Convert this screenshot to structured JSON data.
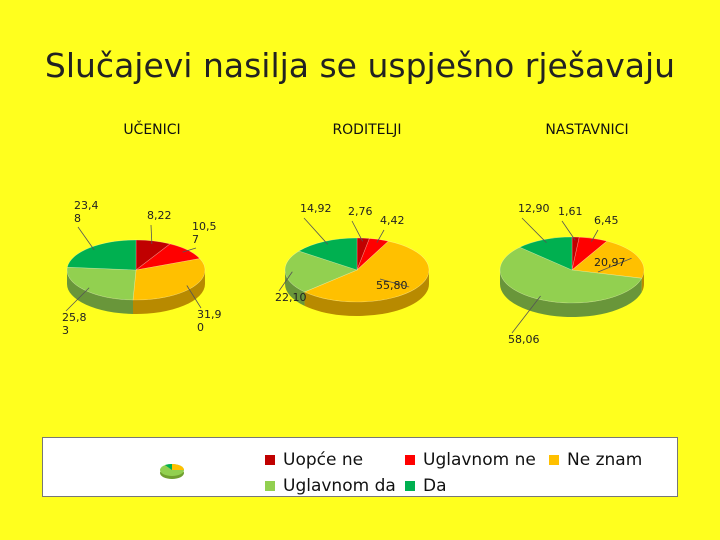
{
  "page": {
    "title": "Slučajevi nasilja se uspješno rješavaju"
  },
  "categories": [
    "Uopće ne",
    "Uglavnom ne",
    "Ne znam",
    "Uglavnom da",
    "Da"
  ],
  "colors": [
    "#c00000",
    "#ff0000",
    "#ffc000",
    "#92d050",
    "#00b050"
  ],
  "chart_data": [
    {
      "type": "pie",
      "title": "UČENICI",
      "categories": [
        "Uopće ne",
        "Uglavnom ne",
        "Ne znam",
        "Uglavnom da",
        "Da"
      ],
      "values": [
        8.22,
        10.57,
        31.9,
        25.83,
        23.48
      ],
      "labels": [
        "8,22",
        "10,5\n7",
        "31,9\n0",
        "25,8\n3",
        "23,4\n8"
      ]
    },
    {
      "type": "pie",
      "title": "RODITELJI",
      "categories": [
        "Uopće ne",
        "Uglavnom ne",
        "Ne znam",
        "Uglavnom da",
        "Da"
      ],
      "values": [
        2.76,
        4.42,
        55.8,
        22.1,
        14.92
      ],
      "labels": [
        "2,76",
        "4,42",
        "55,80",
        "22,10",
        "14,92"
      ]
    },
    {
      "type": "pie",
      "title": "NASTAVNICI",
      "categories": [
        "Uopće ne",
        "Uglavnom ne",
        "Ne znam",
        "Uglavnom da",
        "Da"
      ],
      "values": [
        1.61,
        6.45,
        20.97,
        58.06,
        12.9
      ],
      "labels": [
        "1,61",
        "6,45",
        "20,97",
        "58,06",
        "12,90"
      ]
    }
  ],
  "legend": {
    "items": [
      "Uopće ne",
      "Uglavnom ne",
      "Ne znam",
      "Uglavnom da",
      "Da"
    ]
  }
}
